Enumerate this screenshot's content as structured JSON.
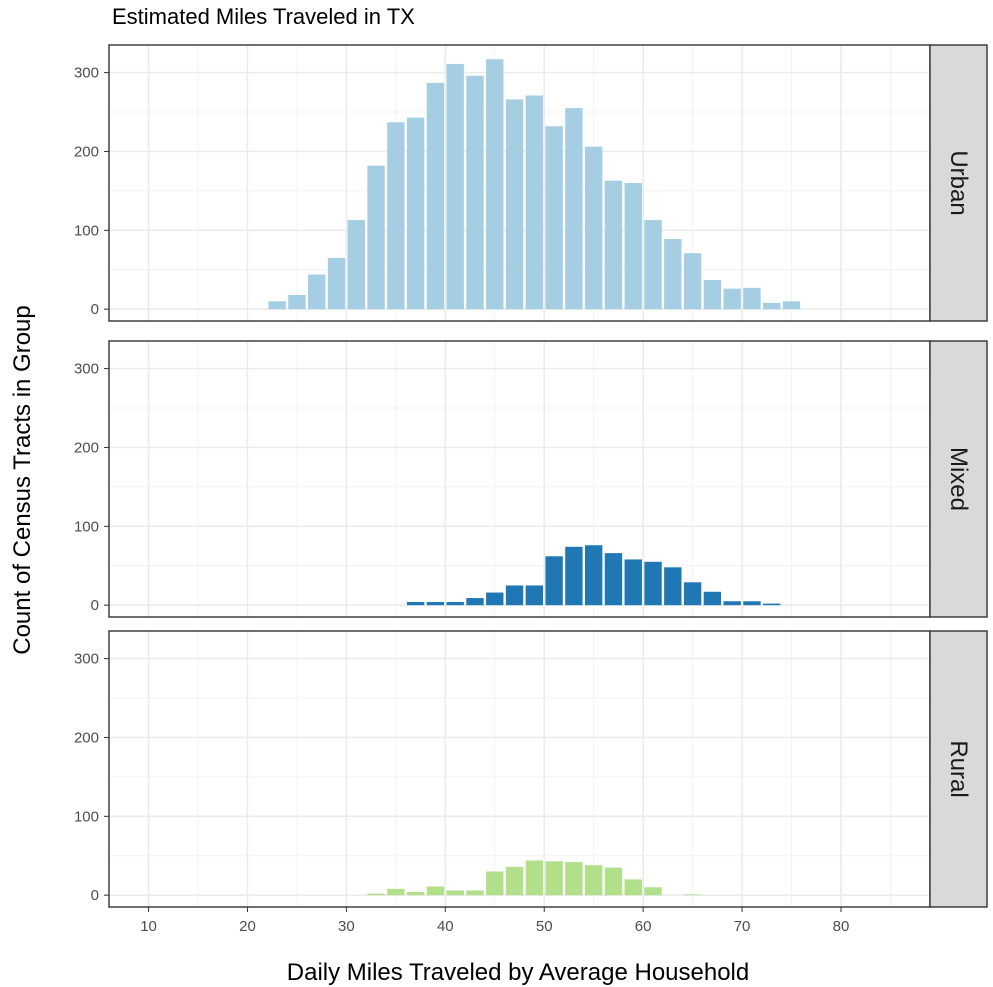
{
  "chart_data": {
    "type": "bar",
    "title": "Estimated Miles Traveled in TX",
    "xlabel": "Daily Miles Traveled by Average Household",
    "ylabel": "Count of Census Tracts in Group",
    "xlim": [
      6,
      89
    ],
    "ylim": [
      -15,
      335
    ],
    "x_ticks": [
      10,
      20,
      30,
      40,
      50,
      60,
      70,
      80
    ],
    "y_ticks": [
      0,
      100,
      200,
      300
    ],
    "grid": true,
    "bin_width": 2,
    "facets": [
      {
        "label": "Urban",
        "color": "#a6cee3",
        "x": [
          23,
          25,
          27,
          29,
          31,
          33,
          35,
          37,
          39,
          41,
          43,
          45,
          47,
          49,
          51,
          53,
          55,
          57,
          59,
          61,
          63,
          65,
          67,
          69,
          71,
          73,
          75
        ],
        "values": [
          10,
          18,
          44,
          65,
          113,
          182,
          237,
          243,
          287,
          311,
          296,
          317,
          266,
          271,
          232,
          255,
          206,
          163,
          160,
          113,
          89,
          71,
          37,
          26,
          27,
          8,
          10
        ]
      },
      {
        "label": "Mixed",
        "color": "#1f78b4",
        "x": [
          37,
          39,
          41,
          43,
          45,
          47,
          49,
          51,
          53,
          55,
          57,
          59,
          61,
          63,
          65,
          67,
          69,
          71,
          73
        ],
        "values": [
          4,
          4,
          4,
          9,
          16,
          25,
          25,
          62,
          74,
          76,
          66,
          58,
          55,
          48,
          29,
          17,
          5,
          5,
          2
        ]
      },
      {
        "label": "Rural",
        "color": "#b2df8a",
        "x": [
          33,
          35,
          37,
          39,
          41,
          43,
          45,
          47,
          49,
          51,
          53,
          55,
          57,
          59,
          61,
          65
        ],
        "values": [
          2,
          8,
          4,
          11,
          6,
          6,
          30,
          36,
          44,
          43,
          42,
          38,
          35,
          20,
          10,
          1
        ]
      }
    ]
  }
}
